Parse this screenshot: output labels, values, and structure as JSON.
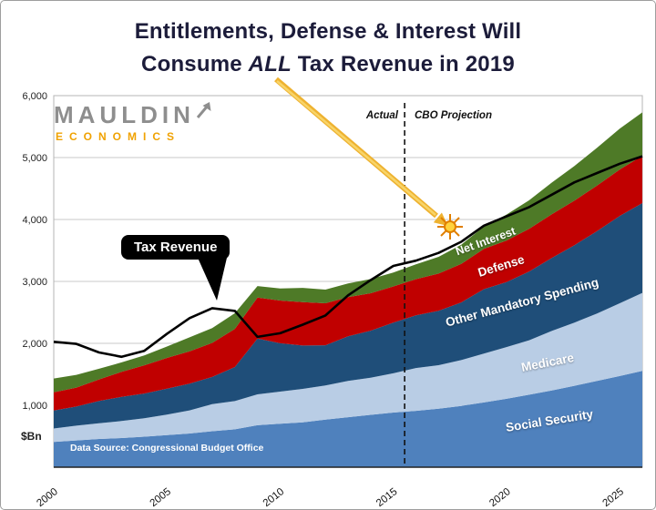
{
  "title": {
    "line1": "Entitlements, Defense & Interest Will",
    "line2_pre": "Consume ",
    "line2_italic": "ALL",
    "line2_post": " Tax Revenue in 2019"
  },
  "logo": {
    "line1": "MAULDIN",
    "line2": "ECONOMICS",
    "gray": "#8e8e8e",
    "orange": "#f0a202"
  },
  "annotations": {
    "actual": "Actual",
    "projection": "CBO Projection",
    "data_source": "Data Source: Congressional Budget Office",
    "unit": "$Bn"
  },
  "chart_data": {
    "type": "area",
    "stacked": true,
    "title": "Entitlements, Defense & Interest Will Consume ALL Tax Revenue in 2019",
    "ylabel": "$Bn",
    "ylim": [
      0,
      6000
    ],
    "grid": true,
    "legend": "labels drawn inside bands",
    "divider_year": 2015.5,
    "x": [
      2000,
      2001,
      2002,
      2003,
      2004,
      2005,
      2006,
      2007,
      2008,
      2009,
      2010,
      2011,
      2012,
      2013,
      2014,
      2015,
      2016,
      2017,
      2018,
      2019,
      2020,
      2021,
      2022,
      2023,
      2024,
      2025,
      2026
    ],
    "series": [
      {
        "name": "Social Security",
        "color": "#4f81bd",
        "values": [
          409,
          433,
          456,
          471,
          492,
          519,
          544,
          581,
          612,
          678,
          701,
          725,
          768,
          808,
          845,
          882,
          910,
          945,
          990,
          1045,
          1105,
          1170,
          1240,
          1315,
          1392,
          1472,
          1555
        ]
      },
      {
        "name": "Medicare",
        "color": "#b9cde5",
        "values": [
          216,
          237,
          253,
          274,
          297,
          330,
          374,
          436,
          456,
          499,
          520,
          540,
          551,
          585,
          600,
          634,
          692,
          702,
          740,
          790,
          835,
          880,
          960,
          1020,
          1090,
          1175,
          1260
        ]
      },
      {
        "name": "Other Mandatory Spending",
        "color": "#1f4e79",
        "values": [
          290,
          310,
          360,
          390,
          400,
          420,
          430,
          440,
          550,
          900,
          780,
          700,
          650,
          720,
          760,
          820,
          850,
          880,
          930,
          1040,
          1050,
          1110,
          1180,
          1250,
          1330,
          1410,
          1450
        ]
      },
      {
        "name": "Defense",
        "color": "#c00000",
        "values": [
          294,
          305,
          349,
          405,
          456,
          495,
          522,
          551,
          616,
          661,
          690,
          700,
          678,
          633,
          604,
          583,
          585,
          600,
          622,
          650,
          670,
          690,
          705,
          720,
          735,
          750,
          765
        ]
      },
      {
        "name": "Net Interest",
        "color": "#4e7a27",
        "values": [
          223,
          206,
          171,
          153,
          160,
          184,
          227,
          237,
          253,
          187,
          196,
          230,
          220,
          221,
          229,
          223,
          240,
          270,
          310,
          360,
          420,
          460,
          510,
          560,
          610,
          660,
          700
        ]
      }
    ],
    "line_series": {
      "name": "Tax Revenue",
      "color": "#000000",
      "values": [
        2025,
        1991,
        1853,
        1782,
        1880,
        2153,
        2407,
        2568,
        2524,
        2105,
        2163,
        2302,
        2450,
        2775,
        3021,
        3250,
        3335,
        3460,
        3640,
        3900,
        4050,
        4200,
        4400,
        4600,
        4750,
        4900,
        5020
      ]
    },
    "yticks": [
      {
        "v": 1000,
        "label": "1,000"
      },
      {
        "v": 2000,
        "label": "2,000"
      },
      {
        "v": 3000,
        "label": "3,000"
      },
      {
        "v": 4000,
        "label": "4,000"
      },
      {
        "v": 5000,
        "label": "5,000"
      },
      {
        "v": 6000,
        "label": "6,000"
      }
    ],
    "xticks": [
      {
        "v": 2000,
        "label": "2000"
      },
      {
        "v": 2005,
        "label": "2005"
      },
      {
        "v": 2010,
        "label": "2010"
      },
      {
        "v": 2015,
        "label": "2015"
      },
      {
        "v": 2020,
        "label": "2020"
      },
      {
        "v": 2025,
        "label": "2025"
      }
    ]
  }
}
